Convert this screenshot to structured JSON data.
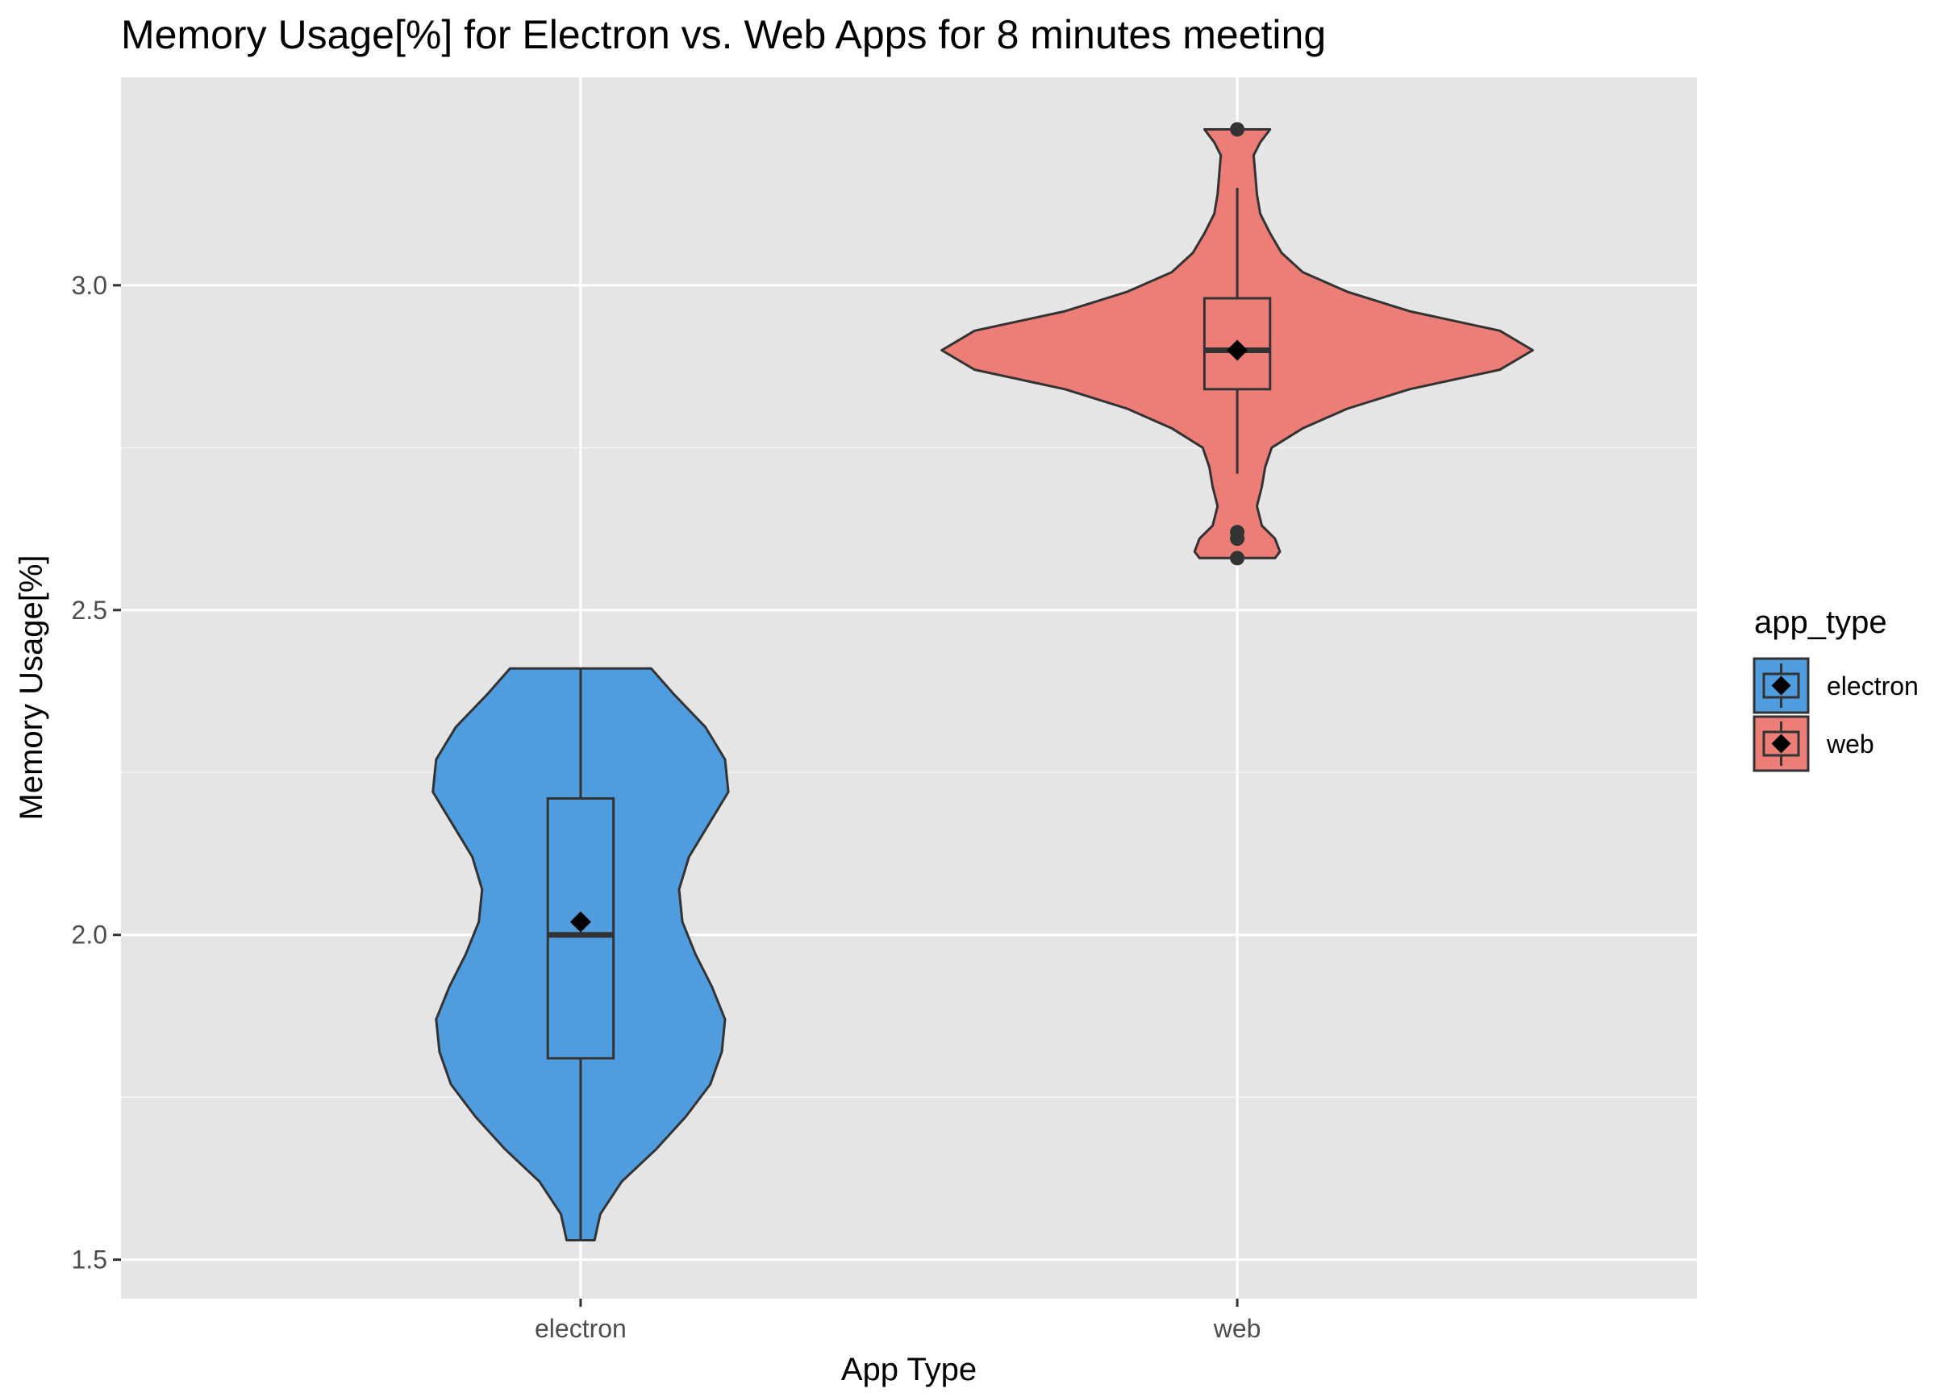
{
  "chart_data": {
    "type": "violin",
    "title": "Memory Usage[%] for Electron vs. Web Apps for 8 minutes meeting",
    "xlabel": "App Type",
    "ylabel": "Memory Usage[%]",
    "categories": [
      "electron",
      "web"
    ],
    "ylim": [
      1.44,
      3.32
    ],
    "y_ticks": [
      1.5,
      2.0,
      2.5,
      3.0
    ],
    "y_tick_labels": [
      "1.5",
      "2.0",
      "2.5",
      "3.0"
    ],
    "grid": true,
    "legend": {
      "title": "app_type",
      "placement": "right",
      "entries": [
        "electron",
        "web"
      ]
    },
    "series": [
      {
        "name": "electron",
        "color": "#4F9DDE",
        "box": {
          "min": 1.53,
          "q1": 1.81,
          "median": 2.0,
          "q3": 2.21,
          "max": 2.41,
          "mean": 2.02
        },
        "outliers": [],
        "violin_density": [
          [
            1.53,
            0.085
          ],
          [
            1.57,
            0.12
          ],
          [
            1.62,
            0.25
          ],
          [
            1.67,
            0.46
          ],
          [
            1.72,
            0.64
          ],
          [
            1.77,
            0.79
          ],
          [
            1.82,
            0.86
          ],
          [
            1.87,
            0.88
          ],
          [
            1.92,
            0.8
          ],
          [
            1.97,
            0.7
          ],
          [
            2.02,
            0.62
          ],
          [
            2.07,
            0.6
          ],
          [
            2.12,
            0.66
          ],
          [
            2.17,
            0.78
          ],
          [
            2.22,
            0.9
          ],
          [
            2.27,
            0.88
          ],
          [
            2.32,
            0.76
          ],
          [
            2.37,
            0.57
          ],
          [
            2.41,
            0.43
          ]
        ]
      },
      {
        "name": "web",
        "color": "#EC7E77",
        "box": {
          "min": 2.71,
          "q1": 2.84,
          "median": 2.9,
          "q3": 2.98,
          "max": 3.15,
          "mean": 2.9
        },
        "outliers": [
          3.24,
          2.62,
          2.61,
          2.58
        ],
        "violin_density": [
          [
            2.58,
            0.23
          ],
          [
            2.59,
            0.26
          ],
          [
            2.61,
            0.23
          ],
          [
            2.63,
            0.15
          ],
          [
            2.66,
            0.12
          ],
          [
            2.69,
            0.15
          ],
          [
            2.72,
            0.17
          ],
          [
            2.75,
            0.21
          ],
          [
            2.78,
            0.4
          ],
          [
            2.81,
            0.67
          ],
          [
            2.84,
            1.05
          ],
          [
            2.87,
            1.6
          ],
          [
            2.9,
            1.8
          ],
          [
            2.93,
            1.6
          ],
          [
            2.96,
            1.05
          ],
          [
            2.99,
            0.67
          ],
          [
            3.02,
            0.4
          ],
          [
            3.05,
            0.27
          ],
          [
            3.08,
            0.2
          ],
          [
            3.11,
            0.14
          ],
          [
            3.14,
            0.12
          ],
          [
            3.17,
            0.11
          ],
          [
            3.2,
            0.1
          ],
          [
            3.22,
            0.14
          ],
          [
            3.24,
            0.2
          ]
        ]
      }
    ]
  }
}
